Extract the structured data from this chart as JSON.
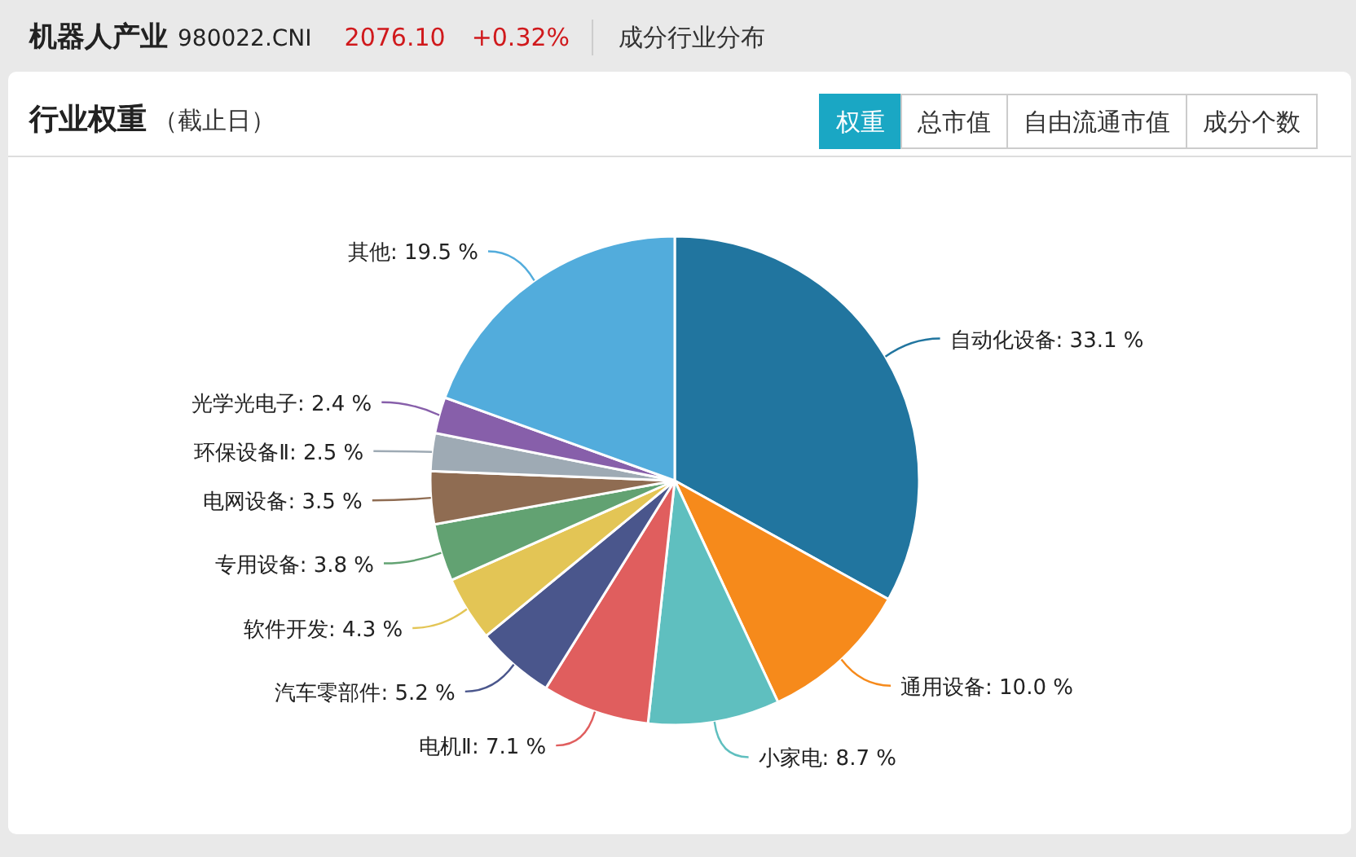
{
  "chart_data": {
    "type": "pie",
    "title": "行业权重",
    "subtitle": "（截止日）",
    "annotations": [
      "机器人产业",
      "980022.CNI",
      "2076.10",
      "+0.32%",
      "成分行业分布",
      "权重",
      "总市值",
      "自由流通市值",
      "成分个数"
    ],
    "categories": [
      "自动化设备",
      "通用设备",
      "小家电",
      "电机Ⅱ",
      "汽车零部件",
      "软件开发",
      "专用设备",
      "电网设备",
      "环保设备Ⅱ",
      "光学光电子",
      "其他"
    ],
    "values": [
      33.1,
      10.0,
      8.7,
      7.1,
      5.2,
      4.3,
      3.8,
      3.5,
      2.5,
      2.4,
      19.5
    ],
    "value_labels": [
      "33.1 %",
      "10.0 %",
      "8.7 %",
      "7.1 %",
      "5.2 %",
      "4.3 %",
      "3.8 %",
      "3.5 %",
      "2.5 %",
      "2.4 %",
      "19.5 %"
    ],
    "colors": [
      "#21759f",
      "#f68a1b",
      "#5fbfbf",
      "#e05e5e",
      "#4a568c",
      "#e3c555",
      "#62a272",
      "#8f6c52",
      "#9eaab4",
      "#875faa",
      "#52acdc"
    ]
  }
}
